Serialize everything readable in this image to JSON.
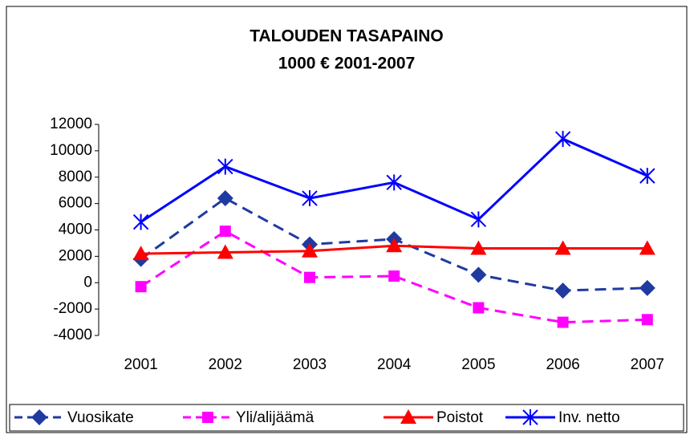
{
  "chart_data": {
    "type": "line",
    "title": "TALOUDEN TASAPAINO",
    "subtitle": "1000 € 2001-2007",
    "categories": [
      "2001",
      "2002",
      "2003",
      "2004",
      "2005",
      "2006",
      "2007"
    ],
    "series": [
      {
        "name": "Vuosikate",
        "color": "#1f3aa0",
        "values": [
          1800,
          6400,
          2900,
          3300,
          600,
          -600,
          -400
        ]
      },
      {
        "name": "Yli/alijäämä",
        "color": "#ff00ff",
        "values": [
          -300,
          3900,
          400,
          500,
          -1900,
          -3000,
          -2800
        ]
      },
      {
        "name": "Poistot",
        "color": "#ff0000",
        "values": [
          2200,
          2300,
          2400,
          2800,
          2600,
          2600,
          2600
        ]
      },
      {
        "name": "Inv. netto",
        "color": "#0000ff",
        "values": [
          4600,
          8800,
          6400,
          7600,
          4800,
          10900,
          8100
        ]
      }
    ],
    "ylim": [
      -4000,
      12000
    ],
    "yticks": [
      -4000,
      -2000,
      0,
      2000,
      4000,
      6000,
      8000,
      10000,
      12000
    ],
    "grid": false,
    "legend": "bottom"
  }
}
